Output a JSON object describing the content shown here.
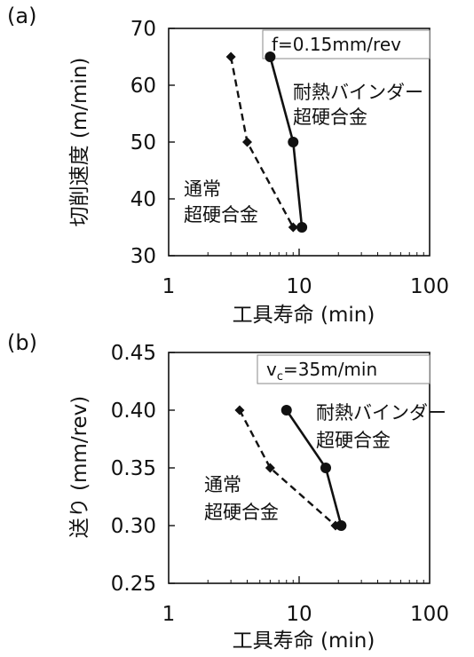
{
  "chart_data": [
    {
      "panel_label": "(a)",
      "type": "line",
      "condition": {
        "text": "f=0.15mm/rev"
      },
      "xlabel": "工具寿命 (min)",
      "ylabel": "切削速度 (m/min)",
      "x_scale": "log",
      "xlim": [
        1,
        100
      ],
      "x_ticks": [
        "1",
        "10",
        "100"
      ],
      "ylim": [
        30,
        70
      ],
      "y_ticks": [
        "30",
        "40",
        "50",
        "60",
        "70"
      ],
      "grid": false,
      "series": [
        {
          "name": "耐熱バインダー超硬合金",
          "label_lines": [
            "耐熱バインダー",
            "超硬合金"
          ],
          "style": "solid",
          "marker": "circle",
          "color": "#111111",
          "points": [
            {
              "x": 6,
              "y": 65
            },
            {
              "x": 9,
              "y": 50
            },
            {
              "x": 10.5,
              "y": 35
            }
          ]
        },
        {
          "name": "通常超硬合金",
          "label_lines": [
            "通常",
            "超硬合金"
          ],
          "style": "dashed",
          "marker": "diamond",
          "color": "#111111",
          "points": [
            {
              "x": 3,
              "y": 65
            },
            {
              "x": 4,
              "y": 50
            },
            {
              "x": 9,
              "y": 35
            }
          ]
        }
      ]
    },
    {
      "panel_label": "(b)",
      "type": "line",
      "condition": {
        "text": "v",
        "sub": "c",
        "rest": "=35m/min"
      },
      "xlabel": "工具寿命 (min)",
      "ylabel": "送り (mm/rev)",
      "x_scale": "log",
      "xlim": [
        1,
        100
      ],
      "x_ticks": [
        "1",
        "10",
        "100"
      ],
      "ylim": [
        0.25,
        0.45
      ],
      "y_ticks": [
        "0.25",
        "0.30",
        "0.35",
        "0.40",
        "0.45"
      ],
      "grid": false,
      "series": [
        {
          "name": "耐熱バインダー超硬合金",
          "label_lines": [
            "耐熱バインダー",
            "超硬合金"
          ],
          "style": "solid",
          "marker": "circle",
          "color": "#111111",
          "points": [
            {
              "x": 8,
              "y": 0.4
            },
            {
              "x": 16,
              "y": 0.35
            },
            {
              "x": 21,
              "y": 0.3
            }
          ]
        },
        {
          "name": "通常超硬合金",
          "label_lines": [
            "通常",
            "超硬合金"
          ],
          "style": "dashed",
          "marker": "diamond",
          "color": "#111111",
          "points": [
            {
              "x": 3.5,
              "y": 0.4
            },
            {
              "x": 6,
              "y": 0.35
            },
            {
              "x": 19,
              "y": 0.3
            }
          ]
        }
      ]
    }
  ]
}
